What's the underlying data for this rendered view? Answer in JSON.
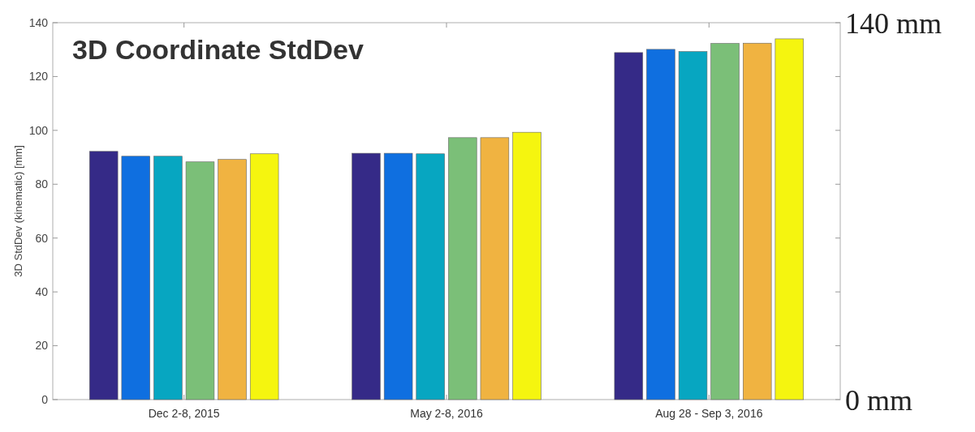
{
  "chart_data": {
    "type": "bar",
    "title": "3D Coordinate StdDev",
    "ylabel": "3D StdDev (kinematic) [mm]",
    "categories": [
      "Dec 2-8, 2015",
      "May 2-8, 2016",
      "Aug 28 - Sep 3, 2016"
    ],
    "series": [
      {
        "color": "#352a87",
        "values": [
          92.2,
          91.5,
          128.9
        ]
      },
      {
        "color": "#0f6fe0",
        "values": [
          90.4,
          91.5,
          130.1
        ]
      },
      {
        "color": "#07a6c1",
        "values": [
          90.4,
          91.3,
          129.3
        ]
      },
      {
        "color": "#7bbf78",
        "values": [
          88.3,
          97.3,
          132.3
        ]
      },
      {
        "color": "#f0b341",
        "values": [
          89.2,
          97.3,
          132.4
        ]
      },
      {
        "color": "#f5f50f",
        "values": [
          91.3,
          99.3,
          134.0
        ]
      }
    ],
    "ylim": [
      0,
      140
    ],
    "yticks": [
      0,
      20,
      40,
      60,
      80,
      100,
      120,
      140
    ],
    "y2lim": [
      0,
      140
    ],
    "y2ticks": [
      {
        "value": 0,
        "label": "0 mm"
      },
      {
        "value": 140,
        "label": "140 mm"
      }
    ],
    "grid": false
  }
}
